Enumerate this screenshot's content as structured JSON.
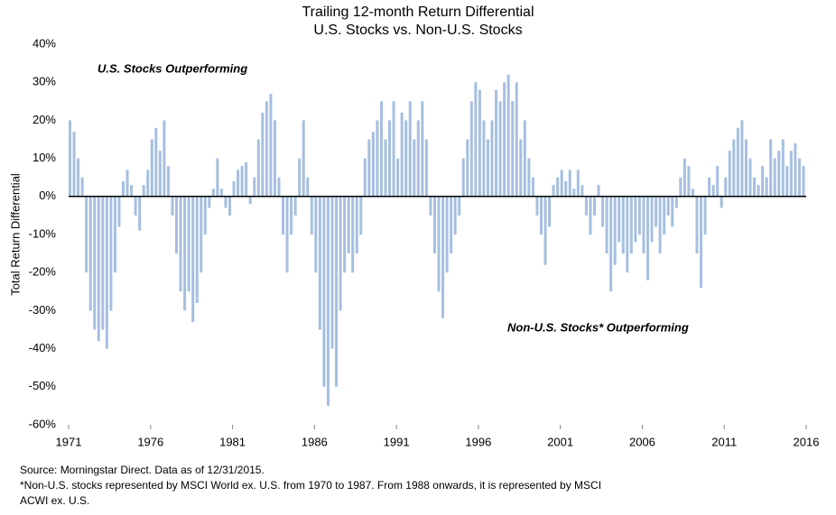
{
  "chart_data": {
    "type": "bar",
    "title": "Trailing 12-month Return Differential",
    "subtitle": "U.S. Stocks vs. Non-U.S. Stocks",
    "y_label": "Total Return Differential",
    "annotations": [
      "U.S. Stocks Outperforming",
      "Non-U.S. Stocks* Outperforming"
    ],
    "notes": [
      "Source: Morningstar Direct. Data as of 12/31/2015.",
      "*Non-U.S. stocks represented by MSCI World ex. U.S. from 1970 to 1987. From 1988 onwards, it is represented by MSCI",
      "ACWI ex. U.S."
    ],
    "color": "#a6bfe0",
    "x": [
      1971,
      1971.25,
      1971.5,
      1971.75,
      1972,
      1972.25,
      1972.5,
      1972.75,
      1973,
      1973.25,
      1973.5,
      1973.75,
      1974,
      1974.25,
      1974.5,
      1974.75,
      1975,
      1975.25,
      1975.5,
      1975.75,
      1976,
      1976.25,
      1976.5,
      1976.75,
      1977,
      1977.25,
      1977.5,
      1977.75,
      1978,
      1978.25,
      1978.5,
      1978.75,
      1979,
      1979.25,
      1979.5,
      1979.75,
      1980,
      1980.25,
      1980.5,
      1980.75,
      1981,
      1981.25,
      1981.5,
      1981.75,
      1982,
      1982.25,
      1982.5,
      1982.75,
      1983,
      1983.25,
      1983.5,
      1983.75,
      1984,
      1984.25,
      1984.5,
      1984.75,
      1985,
      1985.25,
      1985.5,
      1985.75,
      1986,
      1986.25,
      1986.5,
      1986.75,
      1987,
      1987.25,
      1987.5,
      1987.75,
      1988,
      1988.25,
      1988.5,
      1988.75,
      1989,
      1989.25,
      1989.5,
      1989.75,
      1990,
      1990.25,
      1990.5,
      1990.75,
      1991,
      1991.25,
      1991.5,
      1991.75,
      1992,
      1992.25,
      1992.5,
      1992.75,
      1993,
      1993.25,
      1993.5,
      1993.75,
      1994,
      1994.25,
      1994.5,
      1994.75,
      1995,
      1995.25,
      1995.5,
      1995.75,
      1996,
      1996.25,
      1996.5,
      1996.75,
      1997,
      1997.25,
      1997.5,
      1997.75,
      1998,
      1998.25,
      1998.5,
      1998.75,
      1999,
      1999.25,
      1999.5,
      1999.75,
      2000,
      2000.25,
      2000.5,
      2000.75,
      2001,
      2001.25,
      2001.5,
      2001.75,
      2002,
      2002.25,
      2002.5,
      2002.75,
      2003,
      2003.25,
      2003.5,
      2003.75,
      2004,
      2004.25,
      2004.5,
      2004.75,
      2005,
      2005.25,
      2005.5,
      2005.75,
      2006,
      2006.25,
      2006.5,
      2006.75,
      2007,
      2007.25,
      2007.5,
      2007.75,
      2008,
      2008.25,
      2008.5,
      2008.75,
      2009,
      2009.25,
      2009.5,
      2009.75,
      2010,
      2010.25,
      2010.5,
      2010.75,
      2011,
      2011.25,
      2011.5,
      2011.75,
      2012,
      2012.25,
      2012.5,
      2012.75,
      2013,
      2013.25,
      2013.5,
      2013.75,
      2014,
      2014.25,
      2014.5,
      2014.75,
      2015,
      2015.25,
      2015.5,
      2015.75
    ],
    "values": [
      20,
      17,
      10,
      5,
      -20,
      -30,
      -35,
      -38,
      -35,
      -40,
      -30,
      -20,
      -8,
      4,
      7,
      3,
      -5,
      -9,
      3,
      7,
      15,
      18,
      12,
      20,
      8,
      -5,
      -15,
      -25,
      -30,
      -25,
      -33,
      -28,
      -20,
      -10,
      -3,
      2,
      10,
      2,
      -3,
      -5,
      4,
      7,
      8,
      9,
      -2,
      5,
      15,
      22,
      25,
      27,
      20,
      5,
      -10,
      -20,
      -10,
      -5,
      10,
      20,
      5,
      -10,
      -20,
      -35,
      -50,
      -55,
      -40,
      -50,
      -30,
      -20,
      -15,
      -20,
      -15,
      -10,
      10,
      15,
      17,
      20,
      25,
      15,
      20,
      25,
      10,
      22,
      20,
      25,
      15,
      20,
      25,
      15,
      -5,
      -15,
      -25,
      -32,
      -20,
      -15,
      -10,
      -5,
      10,
      15,
      25,
      30,
      28,
      20,
      15,
      20,
      28,
      25,
      30,
      32,
      25,
      30,
      15,
      20,
      10,
      5,
      -5,
      -10,
      -18,
      -8,
      3,
      5,
      7,
      4,
      7,
      2,
      7,
      3,
      -5,
      -10,
      -5,
      3,
      -8,
      -15,
      -25,
      -18,
      -12,
      -15,
      -20,
      -15,
      -12,
      -10,
      -15,
      -22,
      -12,
      -8,
      -15,
      -10,
      -5,
      -8,
      -3,
      5,
      10,
      8,
      2,
      -15,
      -24,
      -10,
      5,
      3,
      8,
      -3,
      5,
      12,
      15,
      18,
      20,
      15,
      10,
      5,
      3,
      8,
      5,
      15,
      10,
      12,
      15,
      8,
      12,
      14,
      10,
      8
    ],
    "xlim": [
      1971,
      2016
    ],
    "xticks": [
      1971,
      1976,
      1981,
      1986,
      1991,
      1996,
      2001,
      2006,
      2011,
      2016
    ],
    "ylim": [
      -60,
      40
    ],
    "yticks": [
      {
        "value": -60,
        "label": "-60%"
      },
      {
        "value": -50,
        "label": "-50%"
      },
      {
        "value": -40,
        "label": "-40%"
      },
      {
        "value": -30,
        "label": "-30%"
      },
      {
        "value": -20,
        "label": "-20%"
      },
      {
        "value": -10,
        "label": "-10%"
      },
      {
        "value": 0,
        "label": "0%"
      },
      {
        "value": 10,
        "label": "10%"
      },
      {
        "value": 20,
        "label": "20%"
      },
      {
        "value": 30,
        "label": "30%"
      },
      {
        "value": 40,
        "label": "40%"
      }
    ]
  }
}
